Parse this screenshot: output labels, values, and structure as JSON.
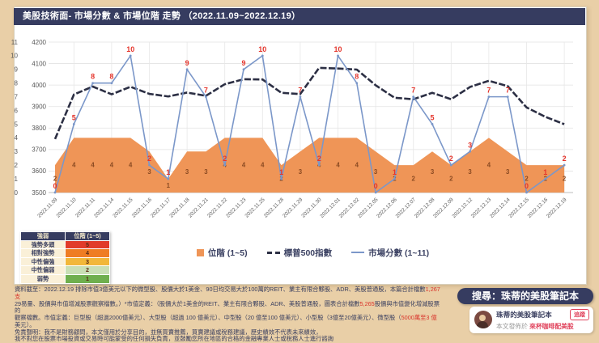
{
  "header": {
    "title": "美股技術面- 市場分數 & 市場位階 走勢 （2022.11.09~2022.12.19）"
  },
  "chart_data": {
    "type": "line",
    "title": "美股技術面- 市場分數 & 市場位階 走勢",
    "x": [
      "2022.11.09",
      "2022.11.10",
      "2022.11.11",
      "2022.11.14",
      "2022.11.15",
      "2022.11.16",
      "2022.11.17",
      "2022.11.18",
      "2022.11.21",
      "2022.11.22",
      "2022.11.23",
      "2022.11.25",
      "2022.11.28",
      "2022.11.29",
      "2022.11.30",
      "2022.12.01",
      "2022.12.02",
      "2022.12.05",
      "2022.12.06",
      "2022.12.07",
      "2022.12.08",
      "2022.12.09",
      "2022.12.12",
      "2022.12.13",
      "2022.12.14",
      "2022.12.15",
      "2022.12.16",
      "2022.12.19"
    ],
    "series": [
      {
        "name": "位階 (1~5)",
        "kind": "area",
        "axis": "score",
        "color": "#ef9557",
        "label_color": "#8a4a22",
        "values": [
          2,
          4,
          4,
          4,
          4,
          3,
          1,
          3,
          3,
          4,
          4,
          4,
          2,
          3,
          4,
          4,
          4,
          3,
          2,
          2,
          3,
          2,
          3,
          4,
          3,
          2,
          2,
          2
        ]
      },
      {
        "name": "標普500指數",
        "kind": "dashed-line",
        "axis": "sp500",
        "color": "#2c2f44",
        "values": [
          3749,
          3956,
          3993,
          3957,
          3992,
          3959,
          3947,
          3965,
          3950,
          4004,
          4027,
          4026,
          3964,
          3958,
          4080,
          4077,
          4072,
          3999,
          3941,
          3934,
          3964,
          3934,
          3991,
          4020,
          3995,
          3896,
          3852,
          3818
        ]
      },
      {
        "name": "市場分數 (1~11)",
        "kind": "line",
        "axis": "score",
        "color": "#7b97c9",
        "label_color": "#e5352c",
        "values": [
          0,
          5,
          8,
          8,
          10,
          2,
          1,
          9,
          7,
          2,
          9,
          10,
          1,
          7,
          2,
          10,
          8,
          0,
          1,
          7,
          5,
          2,
          3,
          7,
          7,
          0,
          1,
          2
        ]
      }
    ],
    "axes": {
      "score": {
        "min": 0,
        "max": 11,
        "step": 1,
        "ticks": [
          0,
          1,
          2,
          3,
          4,
          5,
          6,
          7,
          8,
          9,
          10,
          11
        ]
      },
      "sp500": {
        "min": 3500,
        "max": 4200,
        "step": 100,
        "ticks": [
          3500,
          3600,
          3700,
          3800,
          3900,
          4000,
          4100,
          4200
        ]
      }
    },
    "grid": true,
    "legend_position": "bottom"
  },
  "strength_table": {
    "headers": [
      "強弱",
      "位階 (1~5)"
    ],
    "rows": [
      {
        "label": "強勢多頭",
        "value": "5",
        "color": "#e13b2a"
      },
      {
        "label": "相對強勢",
        "value": "4",
        "color": "#ef7d23"
      },
      {
        "label": "中性偏強",
        "value": "3",
        "color": "#f2b73a"
      },
      {
        "label": "中性偏弱",
        "value": "2",
        "color": "#c9dfb5"
      },
      {
        "label": "弱勢",
        "value": "1",
        "color": "#6faf4e"
      }
    ]
  },
  "footnote": {
    "lines": [
      [
        {
          "t": "資料截至：2022.12.19 排除市值3億美元以下的微型股、股價大於1美金、90日均交易大於100萬的REIT、業主有限合夥股、ADR、美股普通股，本篇合計檔數"
        },
        {
          "t": "1,267支",
          "red": true
        }
      ],
      [
        {
          "t": "29易量、股價與市值增減股票觀察檔數。）*市值定義：（股價大於1美金的REIT、業主有限合夥股、ADR、美股普通股，圖表合計檔數"
        },
        {
          "t": "5,265",
          "red": true
        },
        {
          "t": "股價與市值變化增減股票的"
        }
      ],
      [
        {
          "t": "觀察檔數。市值定義：巨型股（超過2000億美元）、大型股（超過 100 億美元）、中型股（20 億至100 億美元）、小型股（3億至20億美元）、微型股（"
        },
        {
          "t": "5000萬至3 億",
          "red": true
        }
      ],
      [
        {
          "t": "美元）。"
        }
      ],
      [
        {
          "t": "免責聲明：我不是財務顧問，本文僅用於分享目的，並無買賣推薦，買賣建議或稅務建議，歷史績效不代表未來績效，"
        }
      ],
      [
        {
          "t": "我不對您在股票市場投資或交易時可能蒙受的任何損失負責，並鼓勵您所在地區的合格的金融專業人士或稅務人士進行諮詢"
        }
      ]
    ]
  },
  "sidebar": {
    "search_pill": "搜尋：珠蒂的美股筆記本",
    "profile": {
      "name": "珠蒂的美股筆記本",
      "follow_label": "追蹤",
      "published_prefix": "本文發佈於 ",
      "published_link": "來杯咖啡配美股"
    }
  },
  "colors": {
    "page_bg": "#e9cfa7",
    "panel_bg": "#ffffff",
    "navy": "#363c60",
    "area_orange": "#ef9557",
    "score_blue": "#7b97c9",
    "sp500_dark": "#2c2f44",
    "label_red": "#e5352c",
    "accent_red": "#e0435c"
  }
}
